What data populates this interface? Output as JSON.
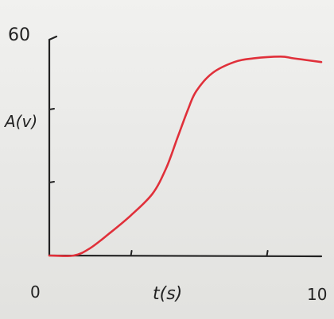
{
  "chart_data": {
    "type": "line",
    "title": "",
    "xlabel": "t(s)",
    "ylabel": "A(v)",
    "xlim": [
      0,
      10
    ],
    "ylim": [
      0,
      60
    ],
    "x_tick_labels": [
      "0",
      "10"
    ],
    "y_tick_labels": [
      "60"
    ],
    "y_ticks": [
      20,
      40,
      60
    ],
    "x_ticks": [
      3,
      8
    ],
    "grid": false,
    "colors": {
      "series": "#e0303a",
      "axes": "#222222"
    },
    "series": [
      {
        "x": [
          0,
          0.9,
          1.5,
          2.2,
          3.0,
          3.8,
          4.3,
          4.7,
          5.1,
          5.4,
          6.0,
          6.8,
          7.5,
          8.5,
          9.0,
          10
        ],
        "y": [
          0,
          0,
          2,
          6,
          11,
          17,
          24,
          32,
          40,
          45,
          50,
          53,
          54,
          54.5,
          54,
          53
        ]
      }
    ]
  }
}
